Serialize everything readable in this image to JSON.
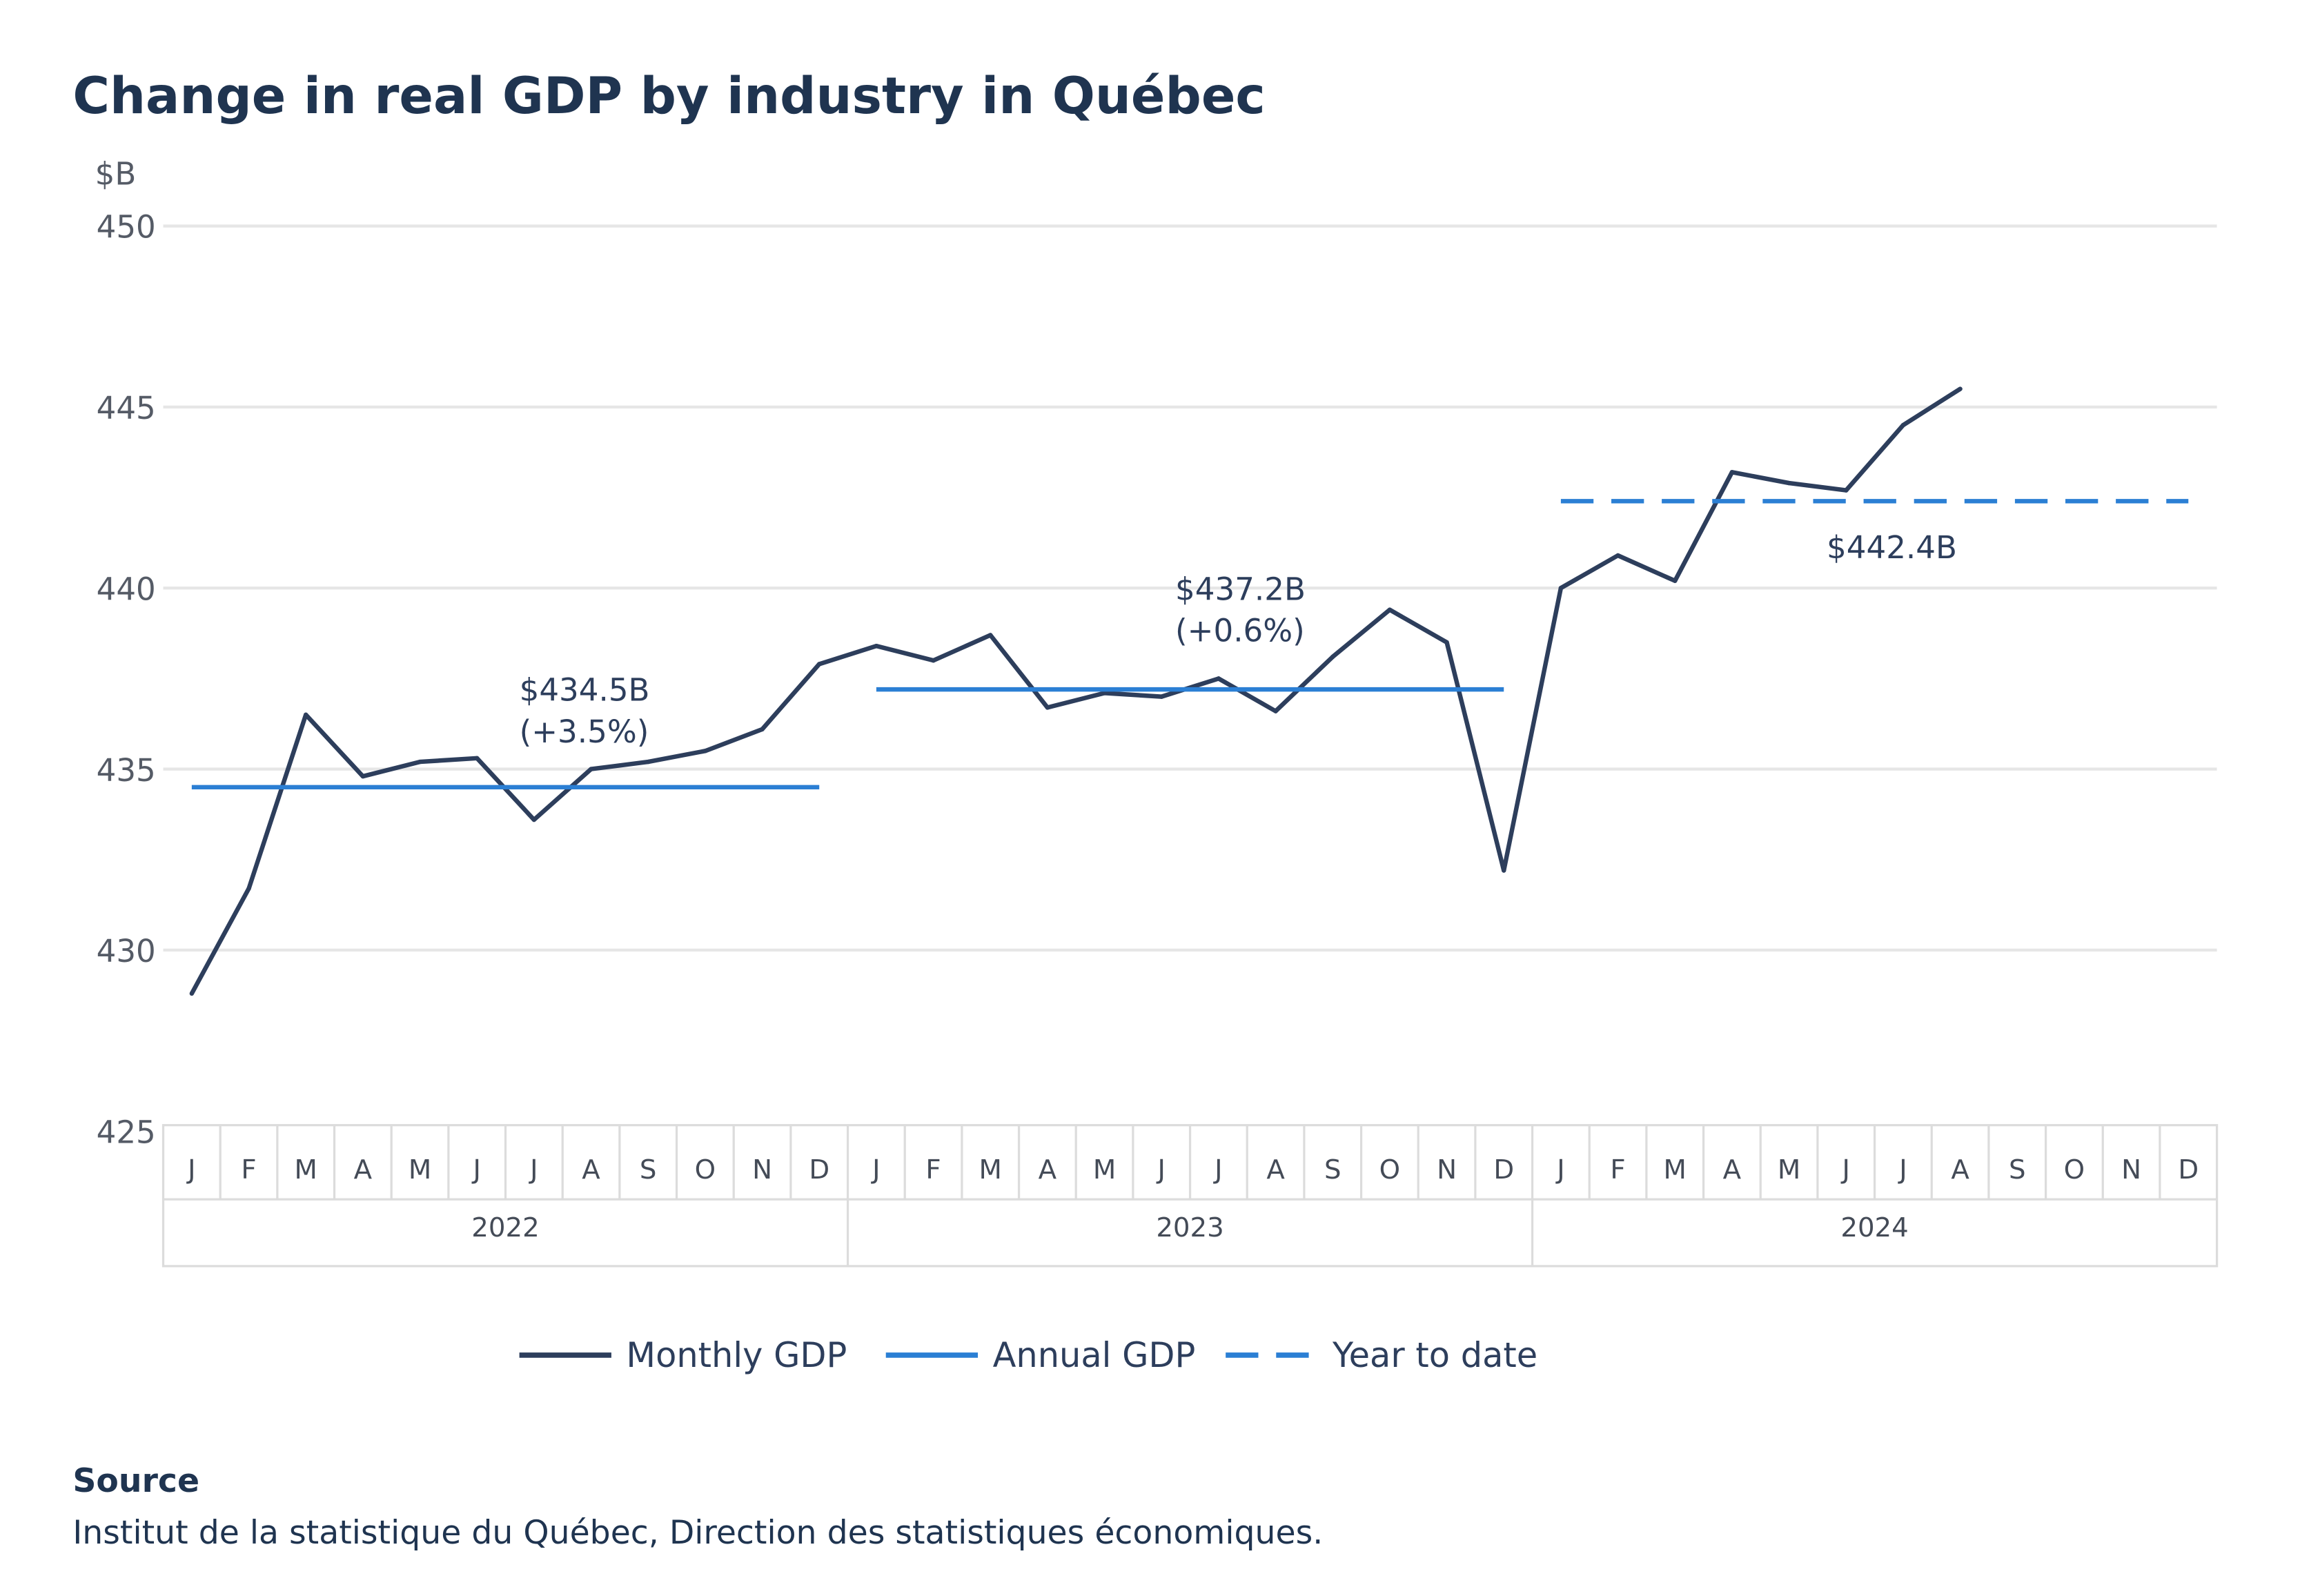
{
  "title": "Change in real GDP by industry in Québec",
  "source_heading": "Source",
  "source_text": "Institut de la statistique du Québec, Direction des statistiques économiques.",
  "colors": {
    "monthly": "#2d3e5c",
    "annual": "#2b7fd4",
    "ytd": "#2b7fd4",
    "grid": "#e6e6e6"
  },
  "chart_data": {
    "type": "line",
    "ylabel": "$B",
    "ylim": [
      425,
      450
    ],
    "yticks": [
      425,
      430,
      435,
      440,
      445,
      450
    ],
    "grid": true,
    "legend_position": "bottom",
    "month_labels": [
      "J",
      "F",
      "M",
      "A",
      "M",
      "J",
      "J",
      "A",
      "S",
      "O",
      "N",
      "D"
    ],
    "years": [
      "2022",
      "2023",
      "2024"
    ],
    "series": [
      {
        "name": "Monthly GDP",
        "style": "solid",
        "values": [
          428.8,
          431.7,
          436.5,
          434.8,
          435.2,
          435.3,
          433.6,
          435.0,
          435.2,
          435.5,
          436.1,
          437.9,
          438.4,
          438.0,
          438.7,
          436.7,
          437.1,
          437.0,
          437.5,
          436.6,
          438.1,
          439.4,
          438.5,
          432.2,
          440.0,
          440.9,
          440.2,
          443.2,
          442.9,
          442.7,
          444.5,
          445.5
        ]
      },
      {
        "name": "Annual GDP",
        "style": "solid",
        "segments": [
          {
            "year": "2022",
            "value": 434.5
          },
          {
            "year": "2023",
            "value": 437.2
          }
        ]
      },
      {
        "name": "Year to date",
        "style": "dashed",
        "segments": [
          {
            "year": "2024",
            "value": 442.4
          }
        ]
      }
    ],
    "annotations": [
      {
        "lines": [
          "$434.5B",
          "(+3.5%)"
        ]
      },
      {
        "lines": [
          "$437.2B",
          "(+0.6%)"
        ]
      },
      {
        "lines": [
          "$442.4B"
        ]
      }
    ]
  }
}
